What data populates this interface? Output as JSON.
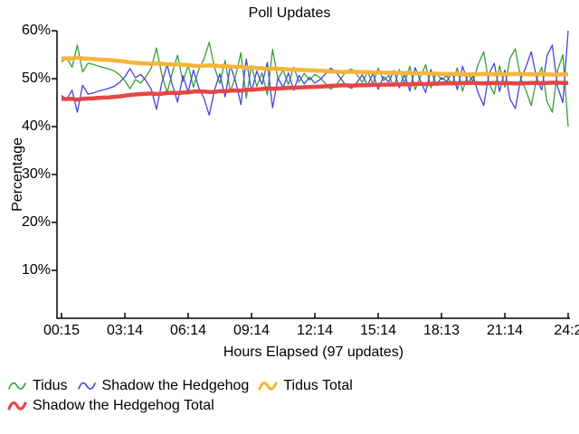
{
  "title": "Poll Updates",
  "axes": {
    "x_label": "Hours Elapsed (97 updates)",
    "y_label": "Percentage",
    "x_ticks": [
      "00:15",
      "03:14",
      "06:14",
      "09:14",
      "12:14",
      "15:14",
      "18:13",
      "21:14",
      "24:2"
    ],
    "y_ticks": [
      "60%",
      "50%",
      "40%",
      "30%",
      "20%",
      "10%"
    ]
  },
  "colors": {
    "background": "#FFFFFF",
    "axis": "#000000",
    "text": "#000000",
    "tidus": "#35A035",
    "shadow": "#4444DD",
    "tidus_total": "#F5B43A",
    "shadow_total": "#E64545"
  },
  "legend": {
    "rows": [
      [
        0,
        1,
        2
      ],
      [
        3
      ]
    ]
  },
  "chart_data": {
    "type": "line",
    "title": "Poll Updates",
    "xlabel": "Hours Elapsed (97 updates)",
    "ylabel": "Percentage",
    "ylim": [
      0,
      60
    ],
    "y_tick_values": [
      60,
      50,
      40,
      30,
      20,
      10
    ],
    "x_tick_labels": [
      "00:15",
      "03:14",
      "06:14",
      "09:14",
      "12:14",
      "15:14",
      "18:13",
      "21:14",
      "24:2"
    ],
    "n_points": 97,
    "grid": false,
    "legend_position": "bottom-left",
    "series": [
      {
        "name": "Tidus",
        "color": "#35A035",
        "width": 1.3,
        "values": [
          53.5,
          54.3,
          52.4,
          57.0,
          51.4,
          53.2,
          53.0,
          52.6,
          52.3,
          52.0,
          51.6,
          50.8,
          49.6,
          47.9,
          49.8,
          49.1,
          50.4,
          52.2,
          56.4,
          50.9,
          47.1,
          51.3,
          54.9,
          49.4,
          52.8,
          48.2,
          51.9,
          54.1,
          57.6,
          52.3,
          49.0,
          53.8,
          47.3,
          50.6,
          55.4,
          45.9,
          52.7,
          48.4,
          51.2,
          46.6,
          56.1,
          49.9,
          51.8,
          48.8,
          52.4,
          49.3,
          51.1,
          49.7,
          50.9,
          50.2,
          49.0,
          47.8,
          48.6,
          50.1,
          51.6,
          52.0,
          50.8,
          49.2,
          51.4,
          48.9,
          52.2,
          49.6,
          50.7,
          48.3,
          51.9,
          49.1,
          52.6,
          47.7,
          50.4,
          52.9,
          48.1,
          51.2,
          49.8,
          50.6,
          48.7,
          52.3,
          47.4,
          50.9,
          49.5,
          53.1,
          55.6,
          49.0,
          46.8,
          52.7,
          48.2,
          54.3,
          56.2,
          50.1,
          47.6,
          44.4,
          49.8,
          52.4,
          45.2,
          43.0,
          51.7,
          55.0,
          40.0
        ]
      },
      {
        "name": "Shadow the Hedgehog",
        "color": "#4444DD",
        "width": 1.3,
        "values": [
          46.5,
          45.7,
          47.6,
          43.0,
          48.6,
          46.8,
          47.0,
          47.4,
          47.7,
          48.0,
          48.4,
          49.2,
          50.4,
          52.1,
          50.2,
          50.9,
          49.6,
          47.8,
          43.6,
          49.1,
          52.9,
          48.7,
          45.1,
          50.6,
          47.2,
          51.8,
          48.1,
          45.9,
          42.4,
          47.7,
          51.0,
          46.2,
          52.7,
          49.4,
          44.6,
          54.1,
          47.3,
          51.6,
          48.8,
          53.4,
          43.9,
          50.1,
          48.2,
          51.2,
          47.6,
          50.7,
          48.9,
          50.3,
          49.1,
          49.8,
          51.0,
          52.2,
          51.4,
          49.9,
          48.4,
          48.0,
          49.2,
          50.8,
          48.6,
          51.1,
          47.8,
          50.4,
          49.3,
          51.7,
          48.1,
          50.9,
          47.4,
          52.3,
          49.6,
          47.1,
          51.9,
          48.8,
          50.2,
          49.4,
          51.3,
          47.7,
          52.6,
          49.1,
          50.5,
          46.9,
          44.4,
          51.0,
          53.2,
          47.3,
          51.8,
          45.7,
          43.8,
          49.9,
          52.4,
          55.6,
          50.2,
          47.6,
          54.8,
          57.0,
          48.3,
          45.0,
          60.0
        ]
      },
      {
        "name": "Tidus Total",
        "color": "#F5B43A",
        "width": 4.5,
        "values": [
          54.2,
          54.25,
          54.2,
          54.4,
          54.2,
          54.15,
          54.1,
          54.0,
          53.95,
          53.9,
          53.8,
          53.7,
          53.55,
          53.4,
          53.3,
          53.2,
          53.15,
          53.1,
          53.2,
          53.15,
          53.0,
          52.95,
          53.0,
          52.9,
          52.85,
          52.7,
          52.65,
          52.7,
          52.8,
          52.75,
          52.6,
          52.65,
          52.5,
          52.45,
          52.5,
          52.3,
          52.3,
          52.2,
          52.15,
          52.0,
          52.1,
          52.05,
          52.0,
          51.9,
          51.9,
          51.85,
          51.8,
          51.75,
          51.7,
          51.65,
          51.6,
          51.5,
          51.45,
          51.4,
          51.4,
          51.45,
          51.4,
          51.35,
          51.35,
          51.3,
          51.3,
          51.25,
          51.25,
          51.2,
          51.2,
          51.15,
          51.2,
          51.1,
          51.1,
          51.15,
          51.05,
          51.05,
          51.0,
          51.0,
          50.95,
          51.0,
          50.9,
          50.9,
          50.9,
          50.95,
          51.0,
          50.95,
          50.9,
          50.95,
          50.9,
          50.95,
          51.0,
          51.0,
          50.95,
          50.9,
          50.9,
          50.95,
          50.9,
          50.85,
          50.85,
          50.9,
          50.9
        ]
      },
      {
        "name": "Shadow the Hedgehog Total",
        "color": "#E64545",
        "width": 4.5,
        "values": [
          45.8,
          45.75,
          45.8,
          45.6,
          45.8,
          45.85,
          45.9,
          46.0,
          46.05,
          46.1,
          46.2,
          46.3,
          46.45,
          46.6,
          46.7,
          46.8,
          46.85,
          46.9,
          46.8,
          46.85,
          47.0,
          47.05,
          47.0,
          47.1,
          47.15,
          47.3,
          47.35,
          47.3,
          47.2,
          47.25,
          47.4,
          47.35,
          47.5,
          47.55,
          47.5,
          47.7,
          47.7,
          47.8,
          47.85,
          48.0,
          47.9,
          47.95,
          48.0,
          48.1,
          48.1,
          48.15,
          48.2,
          48.25,
          48.3,
          48.35,
          48.4,
          48.5,
          48.55,
          48.6,
          48.6,
          48.55,
          48.6,
          48.65,
          48.65,
          48.7,
          48.7,
          48.75,
          48.75,
          48.8,
          48.8,
          48.85,
          48.8,
          48.9,
          48.9,
          48.85,
          48.95,
          48.95,
          49.0,
          49.0,
          49.05,
          49.0,
          49.1,
          49.1,
          49.1,
          49.05,
          49.0,
          49.05,
          49.1,
          49.05,
          49.1,
          49.05,
          49.0,
          49.0,
          49.05,
          49.1,
          49.1,
          49.05,
          49.1,
          49.15,
          49.15,
          49.1,
          49.1
        ]
      }
    ]
  }
}
